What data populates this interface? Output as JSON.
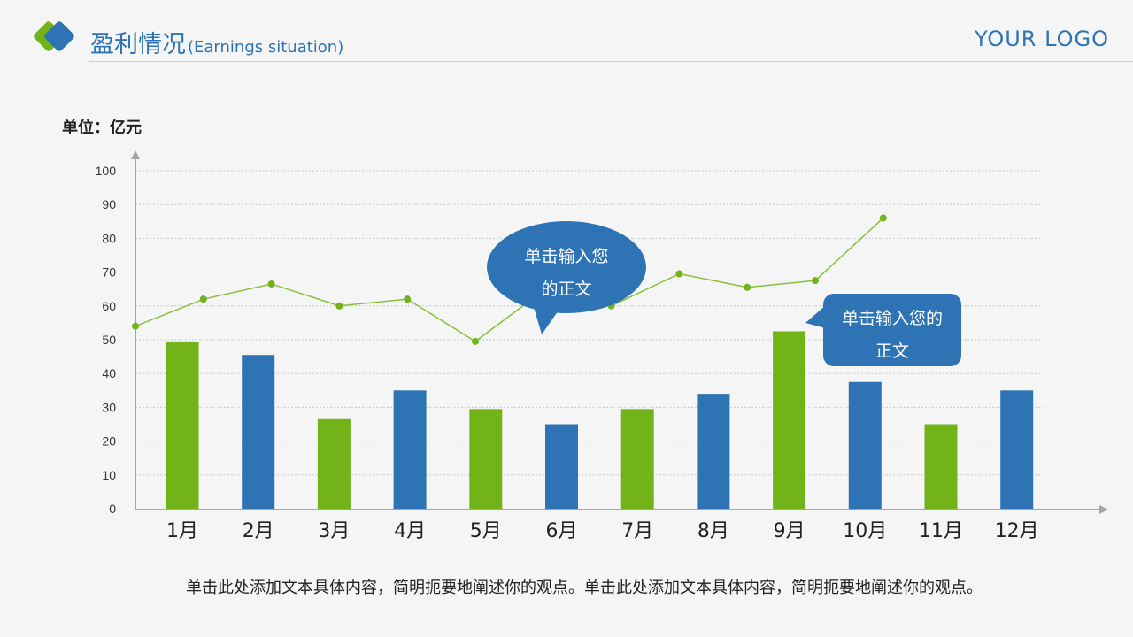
{
  "header": {
    "title": "盈利情况",
    "subtitle": "(Earnings situation)",
    "brand": "YOUR LOGO"
  },
  "colors": {
    "accent_blue": "#2e74b5",
    "accent_green": "#72b31a",
    "line": "#86c13a"
  },
  "unit_label": "单位：亿元",
  "chart_data": {
    "type": "bar",
    "categories": [
      "1月",
      "2月",
      "3月",
      "4月",
      "5月",
      "6月",
      "7月",
      "8月",
      "9月",
      "10月",
      "11月",
      "12月"
    ],
    "values": [
      49.5,
      45.5,
      26.5,
      35,
      29.5,
      25,
      29.5,
      34,
      52.5,
      37.5,
      25,
      35
    ],
    "bar_colors": [
      "green",
      "blue",
      "green",
      "blue",
      "green",
      "blue",
      "green",
      "blue",
      "green",
      "blue",
      "green",
      "blue"
    ],
    "line_values": [
      54,
      62,
      66.5,
      60,
      62,
      49.5,
      64.5,
      60,
      69.5,
      65.5,
      67.5,
      86
    ],
    "ylim": [
      0,
      100
    ],
    "yticks": [
      0,
      10,
      20,
      30,
      40,
      50,
      60,
      70,
      80,
      90,
      100
    ],
    "grid": true,
    "annotations": [
      {
        "text_lines": [
          "单击输入您",
          "的正文"
        ],
        "style": "ellipse"
      },
      {
        "text_lines": [
          "单击输入您的",
          "正文"
        ],
        "style": "rounded-rect"
      }
    ]
  },
  "caption": "单击此处添加文本具体内容，简明扼要地阐述你的观点。单击此处添加文本具体内容，简明扼要地阐述你的观点。"
}
